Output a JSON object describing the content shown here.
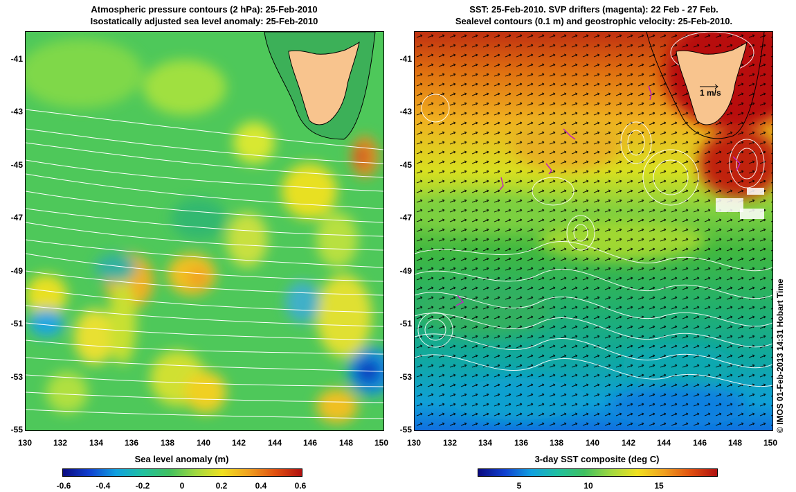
{
  "left_title_line1": "Atmospheric pressure contours (2 hPa): 25-Feb-2010",
  "left_title_line2": "Isostatically adjusted sea level anomaly: 25-Feb-2010",
  "right_title_line1": "SST: 25-Feb-2010. SVP drifters (magenta): 22 Feb - 27 Feb.",
  "right_title_line2": "Sealevel contours (0.1 m) and geostrophic velocity: 25-Feb-2010.",
  "velocity_scale_label": "1 m/s",
  "credit": "© IMOS 01-Feb-2013 14:31 Hobart Time",
  "colors": {
    "land": "#f8c48e",
    "contour_left": "#ffffff",
    "drifter": "#c020c0"
  },
  "chart_data": [
    {
      "type": "heatmap",
      "title": "Atmospheric pressure contours (2 hPa): 25-Feb-2010 / Isostatically adjusted sea level anomaly: 25-Feb-2010",
      "xlim": [
        130,
        150
      ],
      "ylim": [
        -55,
        -40
      ],
      "x_ticks": [
        "130",
        "132",
        "134",
        "136",
        "138",
        "140",
        "142",
        "144",
        "146",
        "148",
        "150"
      ],
      "y_ticks": [
        "-41",
        "-43",
        "-45",
        "-47",
        "-49",
        "-51",
        "-53",
        "-55"
      ],
      "colorbar": {
        "label": "Sea level anomaly (m)",
        "range": [
          -0.6,
          0.6
        ],
        "ticks": [
          "-0.6",
          "-0.4",
          "-0.2",
          "0",
          "0.2",
          "0.4",
          "0.6"
        ]
      },
      "features": [
        {
          "lon": 149.2,
          "lat": -52.8,
          "value": -0.4
        },
        {
          "lon": 148.9,
          "lat": -44.7,
          "value": 0.4
        },
        {
          "lon": 139.5,
          "lat": -49.2,
          "value": 0.3
        },
        {
          "lon": 134.8,
          "lat": -49.5,
          "value": 0.3
        },
        {
          "lon": 131.0,
          "lat": -51.0,
          "value": -0.2
        },
        {
          "lon": 145.5,
          "lat": -45.5,
          "value": 0.2
        },
        {
          "lon": 147.5,
          "lat": -54.0,
          "value": 0.3
        }
      ]
    },
    {
      "type": "heatmap",
      "title": "SST: 25-Feb-2010. SVP drifters (magenta): 22 Feb - 27 Feb. / Sealevel contours (0.1 m) and geostrophic velocity: 25-Feb-2010.",
      "xlim": [
        130,
        150
      ],
      "ylim": [
        -55,
        -40
      ],
      "x_ticks": [
        "130",
        "132",
        "134",
        "136",
        "138",
        "140",
        "142",
        "144",
        "146",
        "148",
        "150"
      ],
      "y_ticks": [
        "-41",
        "-43",
        "-45",
        "-47",
        "-49",
        "-51",
        "-53",
        "-55"
      ],
      "colorbar": {
        "label": "3-day SST composite (deg C)",
        "range": [
          2,
          19
        ],
        "ticks": [
          "5",
          "10",
          "15"
        ]
      },
      "sst_by_latitude": [
        {
          "lat": -40.5,
          "sst": 17.5
        },
        {
          "lat": -42,
          "sst": 15.5
        },
        {
          "lat": -44,
          "sst": 13.5
        },
        {
          "lat": -46,
          "sst": 12
        },
        {
          "lat": -48,
          "sst": 10.5
        },
        {
          "lat": -50,
          "sst": 9.5
        },
        {
          "lat": -52,
          "sst": 8
        },
        {
          "lat": -54,
          "sst": 6
        },
        {
          "lat": -55,
          "sst": 5
        }
      ]
    }
  ]
}
